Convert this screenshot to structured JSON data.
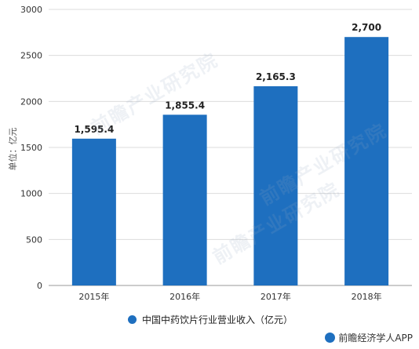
{
  "chart_data": {
    "type": "bar",
    "categories": [
      "2015年",
      "2016年",
      "2017年",
      "2018年"
    ],
    "values": [
      1595.4,
      1855.4,
      2165.3,
      2700
    ],
    "value_labels": [
      "1,595.4",
      "1,855.4",
      "2,165.3",
      "2,700"
    ],
    "ylabel": "单位：亿元",
    "ylim": [
      0,
      3000
    ],
    "yticks": [
      0,
      500,
      1000,
      1500,
      2000,
      2500,
      3000
    ],
    "grid": true,
    "legend_position": "bottom",
    "series": [
      {
        "name": "中国中药饮片行业营业收入（亿元）",
        "values": [
          1595.4,
          1855.4,
          2165.3,
          2700
        ]
      }
    ],
    "bar_color": "#1e6fbf"
  },
  "watermark": "前瞻产业研究院",
  "brand": {
    "text": "前瞻经济学人APP",
    "icon": "brand-logo-icon"
  }
}
